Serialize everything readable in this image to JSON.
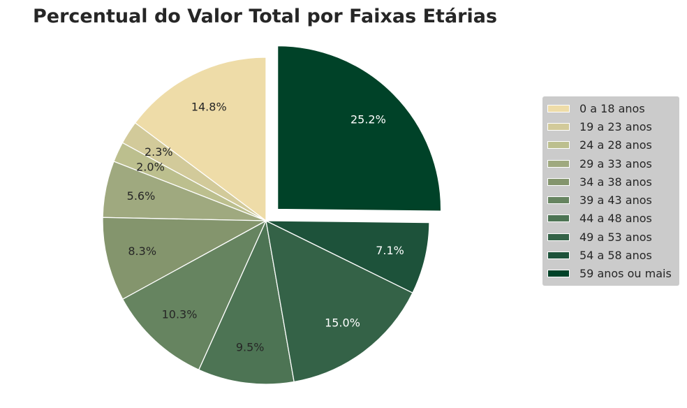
{
  "chart_data": {
    "type": "pie",
    "title": "Percentual do Valor Total por Faixas Etárias",
    "legend_position": "right",
    "start_angle_deg": 90,
    "direction": "counterclockwise",
    "exploded_slice_index": 9,
    "slices": [
      {
        "label": "0 a 18 anos",
        "value": 14.8,
        "label_text": "14.8%",
        "color": "#eedca8",
        "label_color": "#262626"
      },
      {
        "label": "19 a 23 anos",
        "value": 2.3,
        "label_text": "2.3%",
        "color": "#d2ca9a",
        "label_color": "#262626"
      },
      {
        "label": "24 a 28 anos",
        "value": 2.0,
        "label_text": "2.0%",
        "color": "#bcbf8e",
        "label_color": "#262626"
      },
      {
        "label": "29 a 33 anos",
        "value": 5.6,
        "label_text": "5.6%",
        "color": "#9fa97f",
        "label_color": "#262626"
      },
      {
        "label": "34 a 38 anos",
        "value": 8.3,
        "label_text": "8.3%",
        "color": "#84956d",
        "label_color": "#262626"
      },
      {
        "label": "39 a 43 anos",
        "value": 10.3,
        "label_text": "10.3%",
        "color": "#668460",
        "label_color": "#262626"
      },
      {
        "label": "44 a 48 anos",
        "value": 9.5,
        "label_text": "9.5%",
        "color": "#4d7454",
        "label_color": "#262626"
      },
      {
        "label": "49 a 53 anos",
        "value": 15.0,
        "label_text": "15.0%",
        "color": "#346247",
        "label_color": "#ffffff"
      },
      {
        "label": "54 a 58 anos",
        "value": 7.1,
        "label_text": "7.1%",
        "color": "#1d523a",
        "label_color": "#ffffff"
      },
      {
        "label": "59 anos ou mais",
        "value": 25.2,
        "label_text": "25.2%",
        "color": "#004228",
        "label_color": "#ffffff"
      }
    ]
  }
}
